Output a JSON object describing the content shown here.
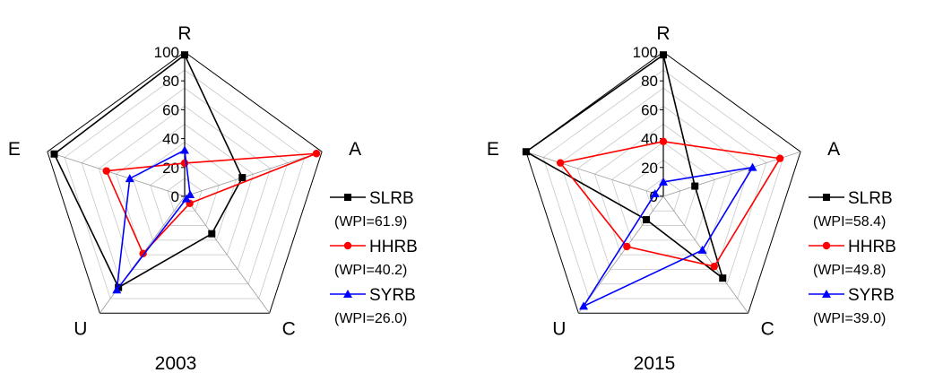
{
  "chart_data": [
    {
      "type": "radar",
      "title": "2003",
      "axes": [
        "R",
        "A",
        "C",
        "U",
        "E"
      ],
      "rlim": [
        0,
        100
      ],
      "ticks": [
        0,
        20,
        40,
        60,
        80,
        100
      ],
      "grid": true,
      "legend_position": "right",
      "series": [
        {
          "name": "SLRB",
          "wpi": "(WPI=61.9)",
          "color": "#000000",
          "marker": "square",
          "values": [
            98,
            42,
            32,
            78,
            95
          ]
        },
        {
          "name": "HHRB",
          "wpi": "(WPI=40.2)",
          "color": "#ff0000",
          "marker": "circle",
          "values": [
            23,
            96,
            6,
            49,
            57
          ]
        },
        {
          "name": "SYRB",
          "wpi": "(WPI=26.0)",
          "color": "#0000ff",
          "marker": "triangle",
          "values": [
            32,
            4,
            2,
            80,
            40
          ]
        }
      ]
    },
    {
      "type": "radar",
      "title": "2015",
      "axes": [
        "R",
        "A",
        "C",
        "U",
        "E"
      ],
      "rlim": [
        0,
        100
      ],
      "ticks": [
        0,
        20,
        40,
        60,
        80,
        100
      ],
      "grid": true,
      "legend_position": "right",
      "series": [
        {
          "name": "SLRB",
          "wpi": "(WPI=58.4)",
          "color": "#000000",
          "marker": "square",
          "values": [
            98,
            23,
            70,
            20,
            100
          ]
        },
        {
          "name": "HHRB",
          "wpi": "(WPI=49.8)",
          "color": "#ff0000",
          "marker": "circle",
          "values": [
            38,
            85,
            60,
            43,
            75
          ]
        },
        {
          "name": "SYRB",
          "wpi": "(WPI=39.0)",
          "color": "#0000ff",
          "marker": "triangle",
          "values": [
            10,
            65,
            46,
            94,
            6
          ]
        }
      ]
    }
  ]
}
